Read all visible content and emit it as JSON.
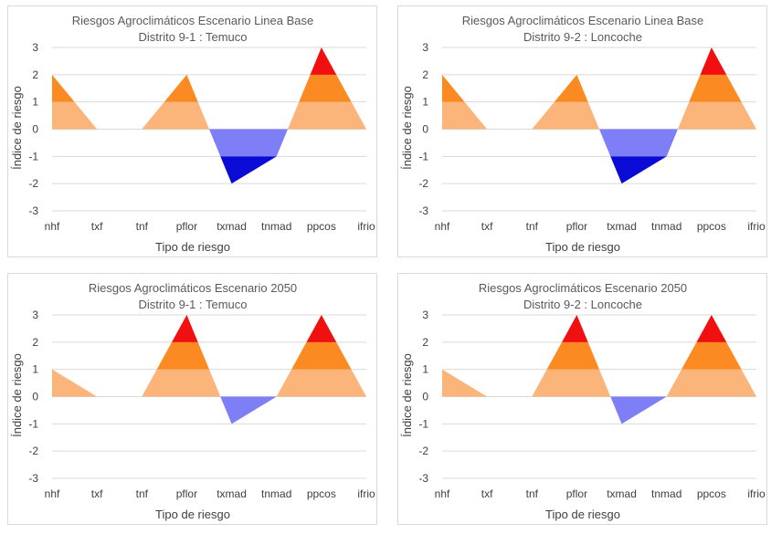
{
  "chart_data": [
    {
      "type": "area",
      "title": "Riesgos Agroclimáticos Escenario Linea Base",
      "subtitle": "Distrito 9-1 : Temuco",
      "xlabel": "Tipo de riesgo",
      "ylabel": "Índice de riesgo",
      "categories": [
        "nhf",
        "txf",
        "tnf",
        "pflor",
        "txmad",
        "tnmad",
        "ppcos",
        "ifrio"
      ],
      "values": [
        2,
        0,
        0,
        2,
        -2,
        -1,
        3,
        0
      ],
      "ylim": [
        -3,
        3
      ],
      "yticks": [
        "3",
        "2",
        "1",
        "0",
        "-1",
        "-2",
        "-3"
      ]
    },
    {
      "type": "area",
      "title": "Riesgos Agroclimáticos Escenario Linea Base",
      "subtitle": "Distrito 9-2 : Loncoche",
      "xlabel": "Tipo de riesgo",
      "ylabel": "Índice de riesgo",
      "categories": [
        "nhf",
        "txf",
        "tnf",
        "pflor",
        "txmad",
        "tnmad",
        "ppcos",
        "ifrio"
      ],
      "values": [
        2,
        0,
        0,
        2,
        -2,
        -1,
        3,
        0
      ],
      "ylim": [
        -3,
        3
      ],
      "yticks": [
        "3",
        "2",
        "1",
        "0",
        "-1",
        "-2",
        "-3"
      ]
    },
    {
      "type": "area",
      "title": "Riesgos Agroclimáticos Escenario 2050",
      "subtitle": "Distrito 9-1 : Temuco",
      "xlabel": "Tipo de riesgo",
      "ylabel": "Índice de riesgo",
      "categories": [
        "nhf",
        "txf",
        "tnf",
        "pflor",
        "txmad",
        "tnmad",
        "ppcos",
        "ifrio"
      ],
      "values": [
        1,
        0,
        0,
        3,
        -1,
        0,
        3,
        0
      ],
      "ylim": [
        -3,
        3
      ],
      "yticks": [
        "3",
        "2",
        "1",
        "0",
        "-1",
        "-2",
        "-3"
      ]
    },
    {
      "type": "area",
      "title": "Riesgos Agroclimáticos Escenario 2050",
      "subtitle": "Distrito 9-2 : Loncoche",
      "xlabel": "Tipo de riesgo",
      "ylabel": "Índice de riesgo",
      "categories": [
        "nhf",
        "txf",
        "tnf",
        "pflor",
        "txmad",
        "tnmad",
        "ppcos",
        "ifrio"
      ],
      "values": [
        1,
        0,
        0,
        3,
        -1,
        0,
        3,
        0
      ],
      "ylim": [
        -3,
        3
      ],
      "yticks": [
        "3",
        "2",
        "1",
        "0",
        "-1",
        "-2",
        "-3"
      ]
    }
  ],
  "colors": {
    "pos_band_1": "#fbb479",
    "pos_band_2": "#fa8a21",
    "pos_band_3": "#f01010",
    "neg_band_1": "#7e7ef7",
    "neg_band_2": "#0b0bd6",
    "gridline": "#d9d9d9"
  }
}
